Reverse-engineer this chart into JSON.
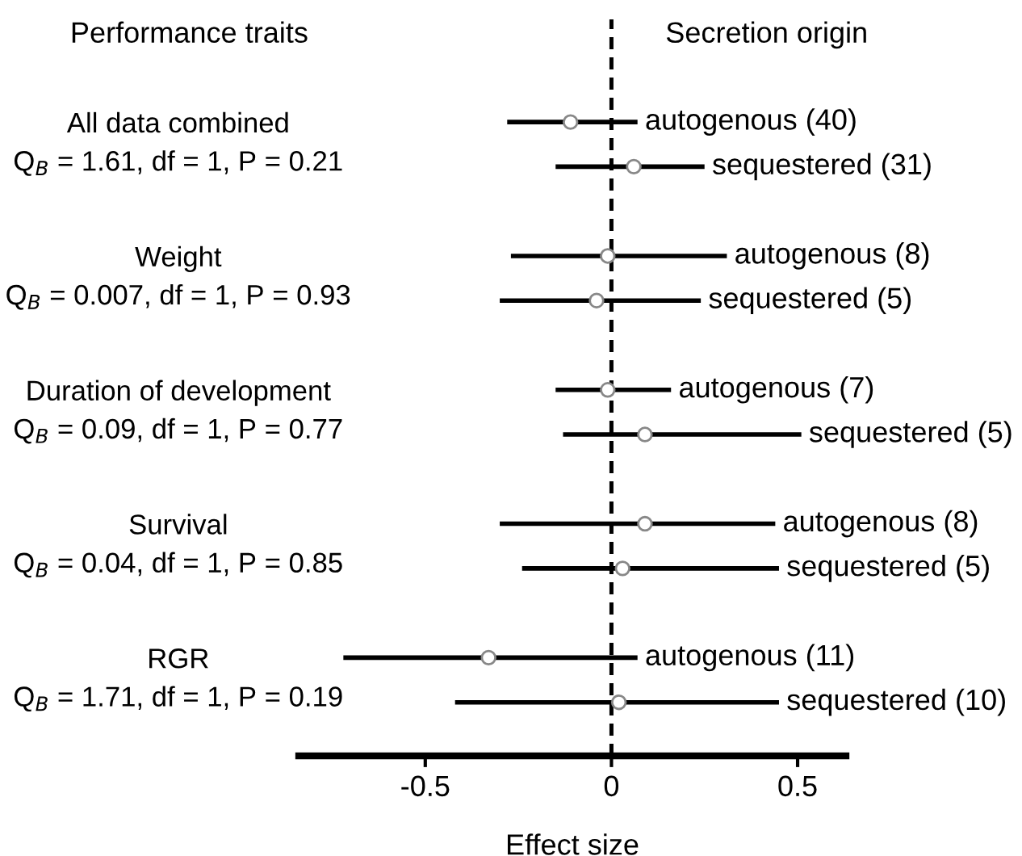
{
  "chart_data": {
    "type": "scatter",
    "orientation": "horizontal",
    "xlabel": "Effect size",
    "categories": [
      "autogenous (40)",
      "sequestered (31)",
      "autogenous (8)",
      "sequestered (5)",
      "autogenous (7)",
      "sequestered (5)",
      "autogenous (8)",
      "sequestered (5)",
      "autogenous (11)",
      "sequestered (10)"
    ],
    "series": [
      {
        "color": "#ffffff",
        "values": [
          -0.11,
          0.06,
          -0.01,
          -0.04,
          -0.01,
          0.09,
          0.09,
          0.03,
          -0.33,
          0.02
        ],
        "errors": [
          [
            -0.28,
            0.07
          ],
          [
            -0.15,
            0.25
          ],
          [
            -0.27,
            0.31
          ],
          [
            -0.3,
            0.24
          ],
          [
            -0.15,
            0.16
          ],
          [
            -0.13,
            0.51
          ],
          [
            -0.3,
            0.44
          ],
          [
            -0.24,
            0.45
          ],
          [
            -0.72,
            0.07
          ],
          [
            -0.42,
            0.45
          ]
        ]
      }
    ],
    "xlim": [
      -0.84,
      0.63
    ],
    "xticks": [
      {
        "value": -0.5,
        "label": "-0.5"
      },
      {
        "value": 0,
        "label": "0"
      },
      {
        "value": 0.5,
        "label": "0.5"
      }
    ],
    "ref_lines": [
      {
        "axis": "x",
        "value": 0,
        "line_style": "dashed",
        "color": "#000000"
      }
    ],
    "annotations": [
      "Performance traits",
      "Secretion origin",
      "All data combined\nQ$_{B}$ = 1.61, df = 1, P = 0.21",
      "Weight\nQ$_{B}$ = 0.007, df = 1, P = 0.93",
      "Duration of development\nQ$_{B}$ = 0.09, df = 1, P = 0.77",
      "Survival\nQ$_{B}$ = 0.04, df = 1, P = 0.85",
      "RGR\nQ$_{B}$ = 1.71, df = 1, P = 0.19"
    ],
    "marker": "circle",
    "grid": false,
    "tick_labels": "x"
  }
}
